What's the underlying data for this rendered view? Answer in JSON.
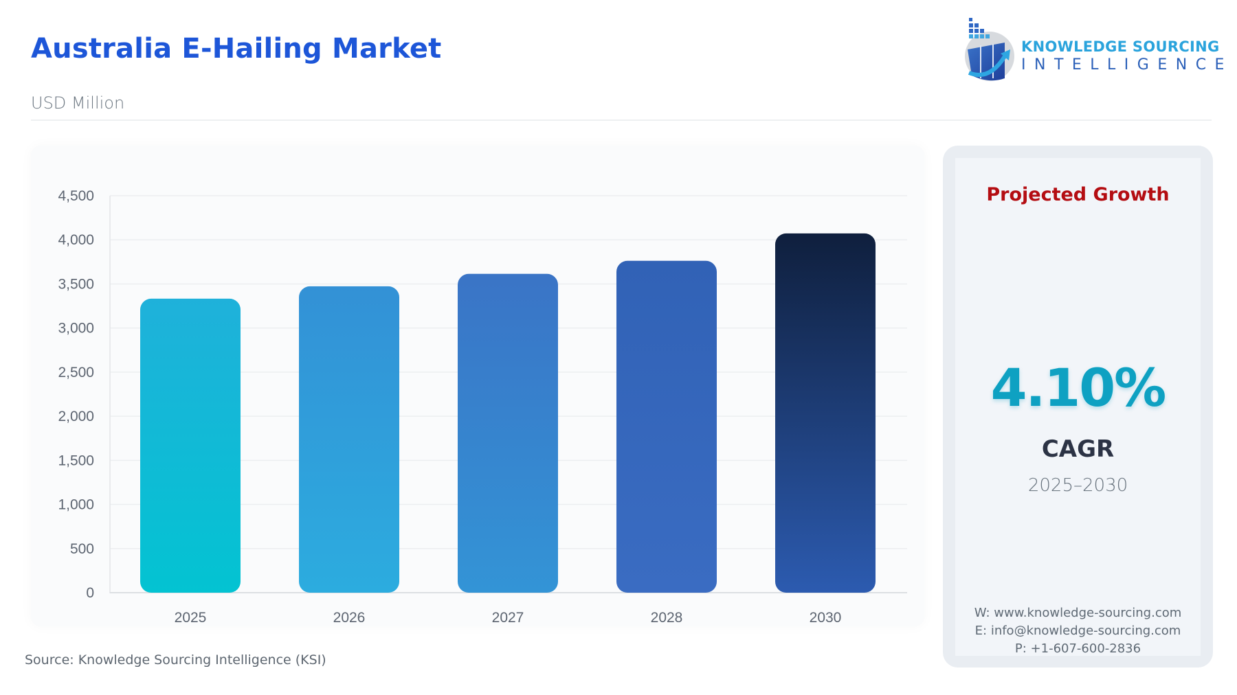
{
  "header": {
    "title": "Australia E-Hailing Market",
    "subtitle": "USD Million"
  },
  "logo": {
    "line1": "KNOWLEDGE SOURCING",
    "line2": "INTELLIGENCE",
    "icon": "ksi-logo-icon"
  },
  "chart_data": {
    "type": "bar",
    "title": "Australia E-Hailing Market",
    "subtitle": "USD Million",
    "categories": [
      "2025",
      "2026",
      "2027",
      "2028",
      "2030"
    ],
    "values": [
      3333,
      3473,
      3614,
      3762,
      4073
    ],
    "xlabel": "",
    "ylabel": "USD Million",
    "ylim": [
      0,
      4500
    ],
    "yticks": [
      0,
      500,
      1000,
      1500,
      2000,
      2500,
      3000,
      3500,
      4000,
      4500
    ],
    "ytick_labels": [
      "0",
      "500",
      "1,000",
      "1,500",
      "2,000",
      "2,500",
      "3,000",
      "3,500",
      "4,000",
      "4,500"
    ],
    "grid": true,
    "legend": "none",
    "bar_colors": [
      {
        "top": "#1fb1da",
        "bottom": "#03c3d2"
      },
      {
        "top": "#3391d6",
        "bottom": "#2cacdf"
      },
      {
        "top": "#3a74c6",
        "bottom": "#3394d6"
      },
      {
        "top": "#3162b6",
        "bottom": "#3a6cc2"
      },
      {
        "top": "#0f1f3d",
        "bottom": "#2c5bb0"
      }
    ]
  },
  "side_panel": {
    "heading": "Projected Growth",
    "cagr_value": "4.10%",
    "cagr_label": "CAGR",
    "period": "2025–2030",
    "contact": {
      "web": "W: www.knowledge-sourcing.com",
      "email": "E: info@knowledge-sourcing.com",
      "phone": "P: +1-607-600-2836"
    }
  },
  "footer": {
    "source": "Source: Knowledge Sourcing Intelligence (KSI)"
  },
  "colors": {
    "title": "#1d56d8",
    "accent_red": "#b40d12",
    "cagr": "#0ea1c2"
  }
}
